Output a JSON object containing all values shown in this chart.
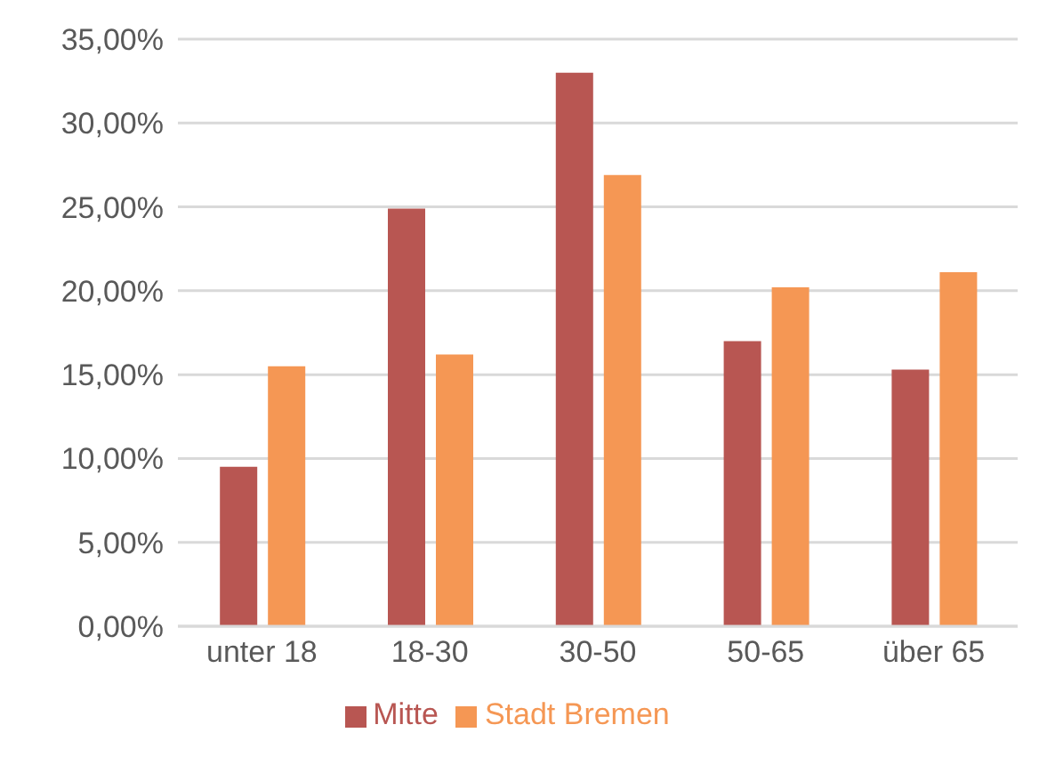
{
  "chart_data": {
    "type": "bar",
    "categories": [
      "unter 18",
      "18-30",
      "30-50",
      "50-65",
      "über 65"
    ],
    "series": [
      {
        "name": "Mitte",
        "color": "#b85652",
        "values": [
          9.5,
          24.9,
          33.0,
          17.0,
          15.3
        ]
      },
      {
        "name": "Stadt Bremen",
        "color": "#f59754",
        "values": [
          15.5,
          16.2,
          26.9,
          20.2,
          21.1
        ]
      }
    ],
    "ylim": [
      0,
      35
    ],
    "yticks": [
      {
        "value": 0,
        "label": "0,00%"
      },
      {
        "value": 5,
        "label": "5,00%"
      },
      {
        "value": 10,
        "label": "10,00%"
      },
      {
        "value": 15,
        "label": "15,00%"
      },
      {
        "value": 20,
        "label": "20,00%"
      },
      {
        "value": 25,
        "label": "25,00%"
      },
      {
        "value": 30,
        "label": "30,00%"
      },
      {
        "value": 35,
        "label": "35,00%"
      }
    ],
    "grid": "y",
    "legend": "bottom"
  }
}
